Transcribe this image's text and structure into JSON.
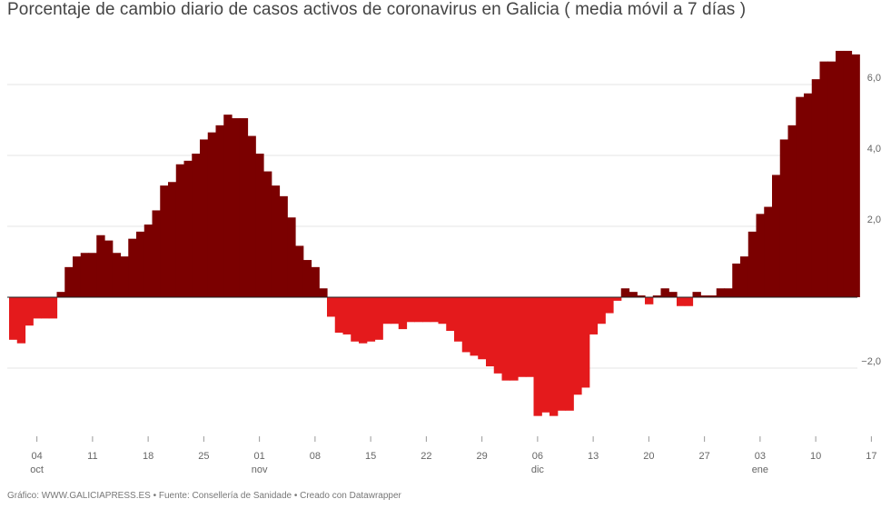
{
  "title": "Porcentaje de cambio diario de casos activos de coronavirus en Galicia ( media móvil a 7 días )",
  "footer": "Gráfico: WWW.GALICIAPRESS.ES • Fuente: Consellería de Sanidade • Creado con Datawrapper",
  "colors": {
    "positive": "#7b0000",
    "negative": "#e41a1c",
    "grid": "#e6e6e6",
    "zero": "#222222",
    "axis_text": "#666666"
  },
  "chart_data": {
    "type": "bar",
    "title": "Porcentaje de cambio diario de casos activos de coronavirus en Galicia ( media móvil a 7 días )",
    "xlabel": "",
    "ylabel": "",
    "ylim": [
      -3.5,
      7.2
    ],
    "y_ticks": [
      {
        "value": 6,
        "label": "6,0"
      },
      {
        "value": 4,
        "label": "4,0"
      },
      {
        "value": 2,
        "label": "2,0"
      },
      {
        "value": -2,
        "label": "−2,0"
      }
    ],
    "x_ticks": [
      {
        "day": 3,
        "label": "04",
        "month": "oct"
      },
      {
        "day": 10,
        "label": "11",
        "month": ""
      },
      {
        "day": 17,
        "label": "18",
        "month": ""
      },
      {
        "day": 24,
        "label": "25",
        "month": ""
      },
      {
        "day": 31,
        "label": "01",
        "month": "nov"
      },
      {
        "day": 38,
        "label": "08",
        "month": ""
      },
      {
        "day": 45,
        "label": "15",
        "month": ""
      },
      {
        "day": 52,
        "label": "22",
        "month": ""
      },
      {
        "day": 59,
        "label": "29",
        "month": ""
      },
      {
        "day": 66,
        "label": "06",
        "month": "dic"
      },
      {
        "day": 73,
        "label": "13",
        "month": ""
      },
      {
        "day": 80,
        "label": "20",
        "month": ""
      },
      {
        "day": 87,
        "label": "27",
        "month": ""
      },
      {
        "day": 94,
        "label": "03",
        "month": "ene"
      },
      {
        "day": 101,
        "label": "10",
        "month": ""
      },
      {
        "day": 108,
        "label": "17",
        "month": ""
      }
    ],
    "grid": true,
    "first_date": "2020-10-01",
    "values": [
      -1.2,
      -1.3,
      -0.8,
      -0.6,
      -0.6,
      -0.6,
      0.15,
      0.85,
      1.15,
      1.25,
      1.25,
      1.75,
      1.6,
      1.25,
      1.15,
      1.65,
      1.85,
      2.05,
      2.45,
      3.15,
      3.25,
      3.75,
      3.85,
      4.05,
      4.45,
      4.65,
      4.85,
      5.15,
      5.05,
      5.05,
      4.55,
      4.05,
      3.55,
      3.15,
      2.85,
      2.25,
      1.45,
      1.05,
      0.85,
      0.25,
      -0.55,
      -1.0,
      -1.05,
      -1.25,
      -1.3,
      -1.25,
      -1.2,
      -0.75,
      -0.75,
      -0.9,
      -0.7,
      -0.7,
      -0.7,
      -0.7,
      -0.75,
      -0.95,
      -1.25,
      -1.55,
      -1.65,
      -1.75,
      -1.95,
      -2.15,
      -2.35,
      -2.35,
      -2.25,
      -2.25,
      -3.35,
      -3.25,
      -3.35,
      -3.2,
      -3.2,
      -2.75,
      -2.55,
      -1.05,
      -0.75,
      -0.45,
      -0.1,
      0.25,
      0.15,
      0.05,
      -0.2,
      0.05,
      0.25,
      0.15,
      -0.25,
      -0.25,
      0.15,
      0.05,
      0.05,
      0.25,
      0.25,
      0.95,
      1.15,
      1.85,
      2.35,
      2.55,
      3.45,
      4.45,
      4.85,
      5.65,
      5.75,
      6.15,
      6.65,
      6.65,
      6.95,
      6.95,
      6.85
    ]
  }
}
